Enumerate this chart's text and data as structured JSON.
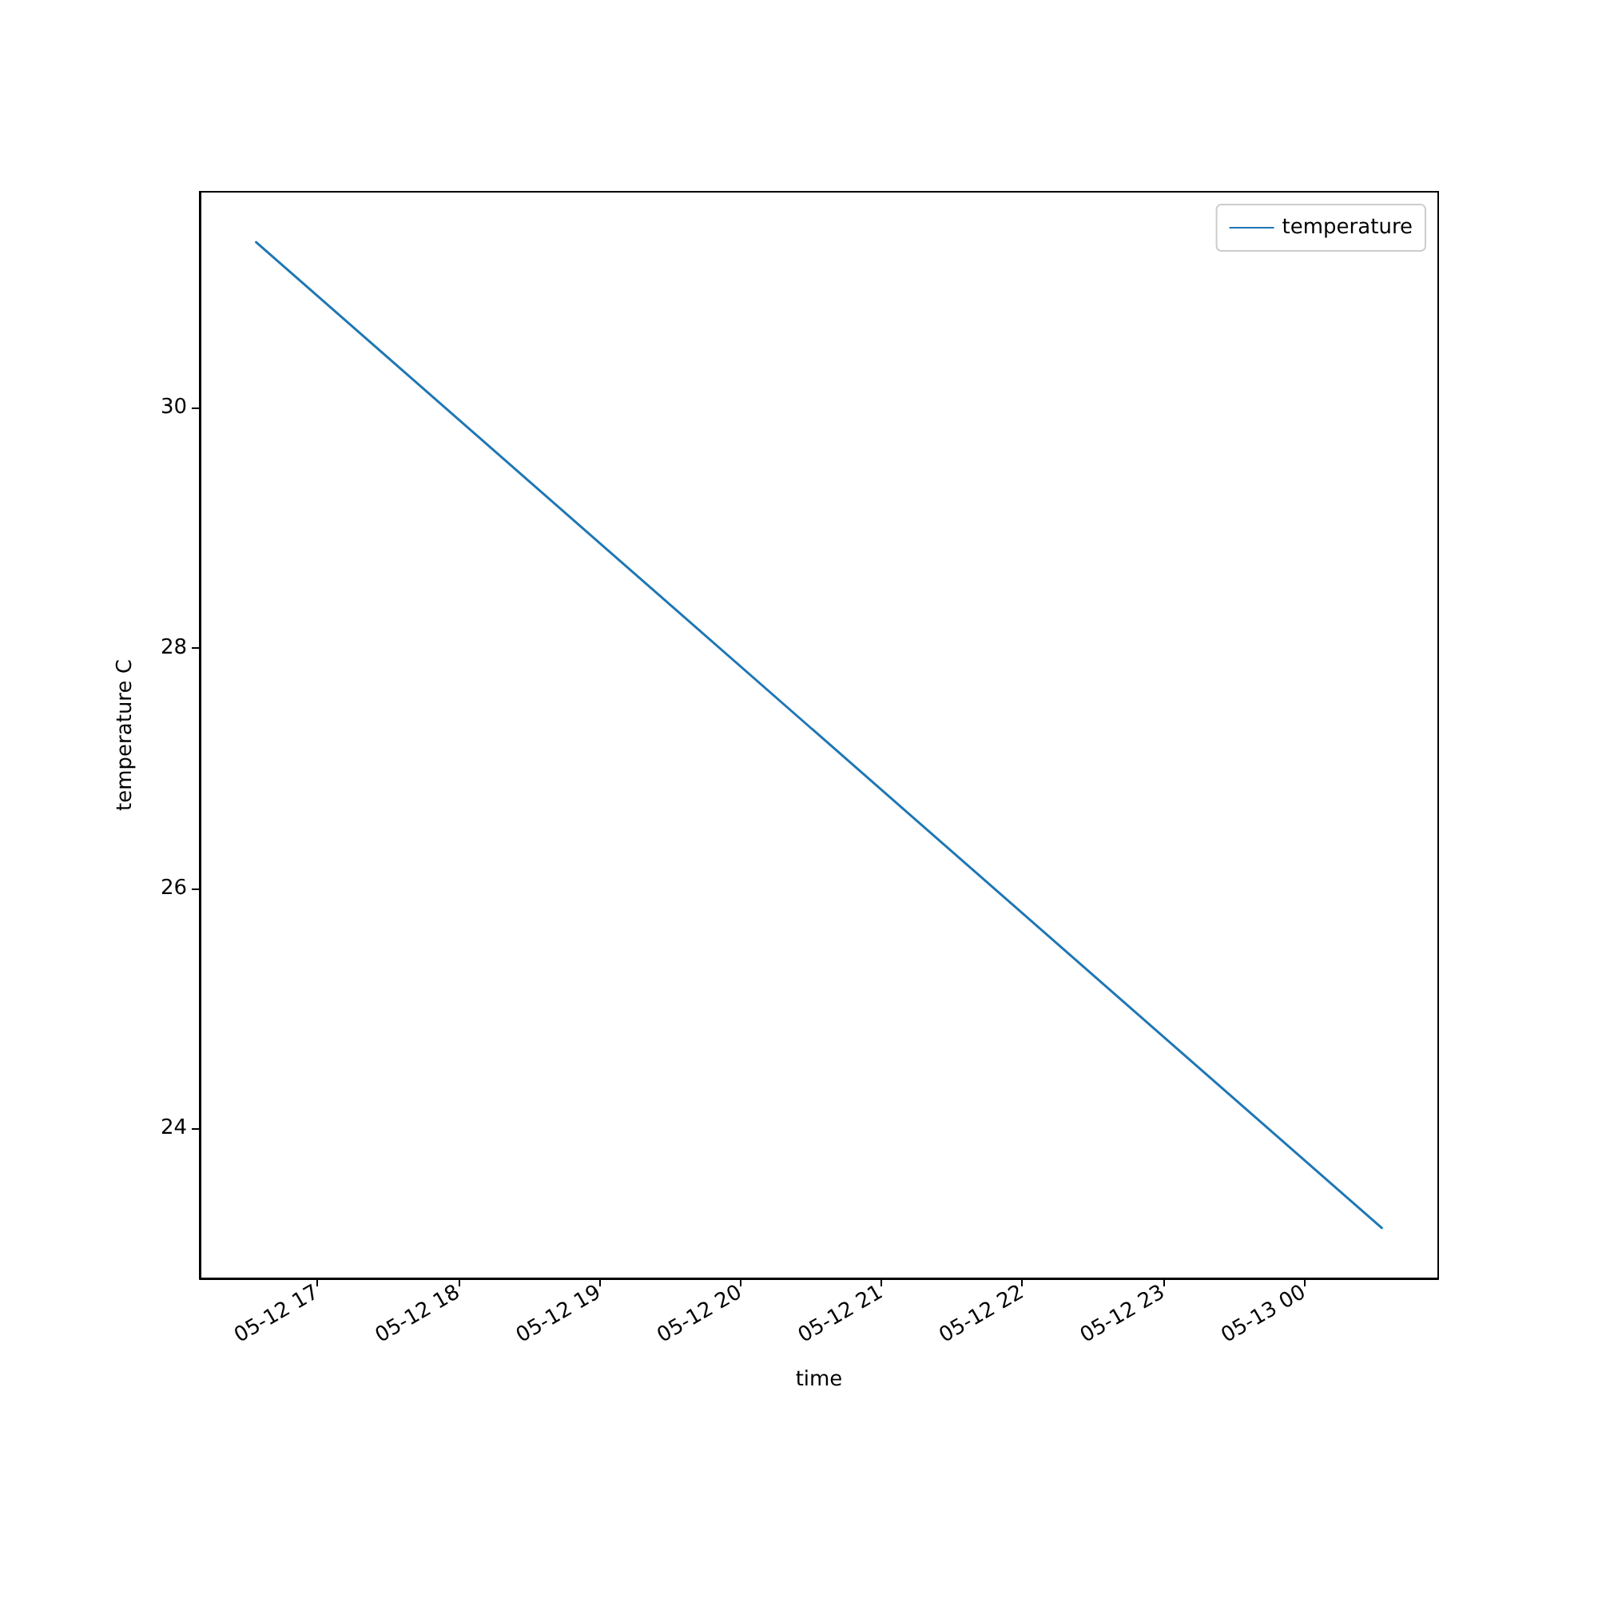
{
  "chart_data": {
    "type": "line",
    "xlabel": "time",
    "ylabel": "temperature C",
    "x": [
      "--05-12T16:34",
      "--05-13T00:33"
    ],
    "series": [
      {
        "name": "temperature",
        "color": "#1f77b4",
        "values": [
          31.38,
          23.17
        ]
      }
    ],
    "xlim": [
      "--05-12T16:10",
      "--05-13T00:57"
    ],
    "xticks": [
      {
        "value": "--05-12T17:00",
        "label": "05-12 17"
      },
      {
        "value": "--05-12T18:00",
        "label": "05-12 18"
      },
      {
        "value": "--05-12T19:00",
        "label": "05-12 19"
      },
      {
        "value": "--05-12T20:00",
        "label": "05-12 20"
      },
      {
        "value": "--05-12T21:00",
        "label": "05-12 21"
      },
      {
        "value": "--05-12T22:00",
        "label": "05-12 22"
      },
      {
        "value": "--05-12T23:00",
        "label": "05-12 23"
      },
      {
        "value": "--05-13T00:00",
        "label": "05-13 00"
      }
    ],
    "ylim": [
      22.75,
      31.8
    ],
    "yticks": [
      24,
      26,
      28,
      30
    ],
    "grid": false,
    "legend": "top right",
    "marker": "none",
    "line_style": "solid"
  }
}
